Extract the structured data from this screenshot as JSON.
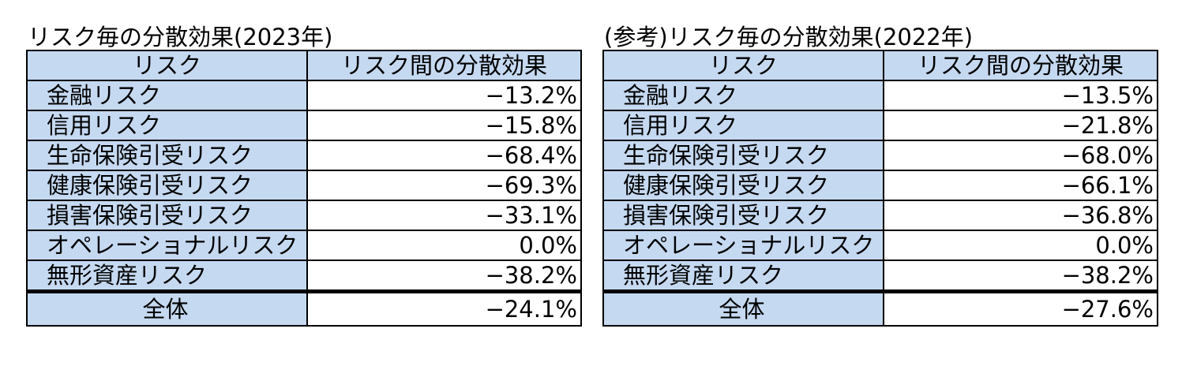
{
  "tables": [
    {
      "title": "リスク毎の分散効果(2023年)",
      "header": [
        "リスク",
        "リスク間の分散効果"
      ],
      "rows": [
        [
          "金融リスク",
          "−13.2%"
        ],
        [
          "信用リスク",
          "−15.8%"
        ],
        [
          "生命保険引受リスク",
          "−68.4%"
        ],
        [
          "健康保険引受リスク",
          "−69.3%"
        ],
        [
          "損害保険引受リスク",
          "−33.1%"
        ],
        [
          "オペレーショナルリスク",
          "0.0%"
        ],
        [
          "無形資産リスク",
          "−38.2%"
        ]
      ],
      "total": [
        "全体",
        "−24.1%"
      ]
    },
    {
      "title": "(参考)リスク毎の分散効果(2022年)",
      "header": [
        "リスク",
        "リスク間の分散効果"
      ],
      "rows": [
        [
          "金融リスク",
          "−13.5%"
        ],
        [
          "信用リスク",
          "−21.8%"
        ],
        [
          "生命保険引受リスク",
          "−68.0%"
        ],
        [
          "健康保険引受リスク",
          "−66.1%"
        ],
        [
          "損害保険引受リスク",
          "−36.8%"
        ],
        [
          "オペレーショナルリスク",
          "0.0%"
        ],
        [
          "無形資産リスク",
          "−38.2%"
        ]
      ],
      "total": [
        "全体",
        "−27.6%"
      ]
    }
  ]
}
